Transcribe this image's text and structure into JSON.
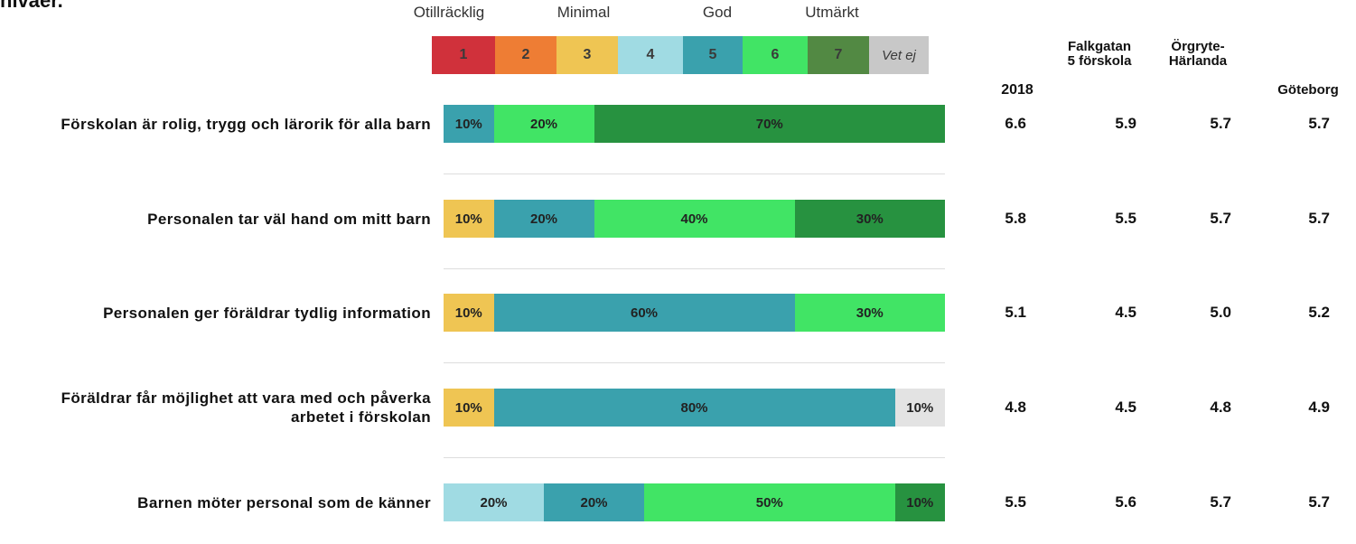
{
  "header": {
    "title_fragment": "nivåer.",
    "scale_labels": [
      "Otillräcklig",
      "Minimal",
      "God",
      "Utmärkt"
    ],
    "columns": [
      "2018",
      "Falkgatan 5 förskola",
      "Örgryte-Härlanda",
      "Göteborg"
    ]
  },
  "legend": {
    "items": [
      {
        "label": "1",
        "color": "#d0313b"
      },
      {
        "label": "2",
        "color": "#ee7d34"
      },
      {
        "label": "3",
        "color": "#efc553"
      },
      {
        "label": "4",
        "color": "#a0dbe3"
      },
      {
        "label": "5",
        "color": "#3aa1ad"
      },
      {
        "label": "6",
        "color": "#41e465"
      },
      {
        "label": "7",
        "color": "#528943"
      },
      {
        "label": "Vet ej",
        "color": "#c8c8c8"
      }
    ]
  },
  "chart_data": {
    "type": "bar",
    "orientation": "horizontal",
    "stacked": true,
    "percent": true,
    "categories": [
      "Förskolan är rolig, trygg och lärorik för alla barn",
      "Personalen tar väl hand om mitt barn",
      "Personalen ger föräldrar tydlig information",
      "Föräldrar får möjlighet att vara med och påverka arbetet i förskolan",
      "Barnen möter personal som de känner"
    ],
    "series": [
      {
        "name": "1",
        "color": "#d0313b",
        "values": [
          0,
          0,
          0,
          0,
          0
        ]
      },
      {
        "name": "2",
        "color": "#ee7d34",
        "values": [
          0,
          0,
          0,
          0,
          0
        ]
      },
      {
        "name": "3",
        "color": "#efc553",
        "values": [
          0,
          10,
          10,
          10,
          0
        ]
      },
      {
        "name": "4",
        "color": "#a0dbe3",
        "values": [
          0,
          0,
          0,
          0,
          20
        ]
      },
      {
        "name": "5",
        "color": "#3aa1ad",
        "values": [
          10,
          20,
          60,
          80,
          20
        ]
      },
      {
        "name": "6",
        "color": "#41e465",
        "values": [
          20,
          40,
          30,
          0,
          50
        ]
      },
      {
        "name": "7",
        "color": "#279240",
        "values": [
          70,
          30,
          0,
          0,
          10
        ]
      },
      {
        "name": "Vet ej",
        "color": "#e3e3e3",
        "values": [
          0,
          0,
          0,
          10,
          0
        ]
      }
    ],
    "data_labels": [
      [
        "10%",
        "20%",
        "70%"
      ],
      [
        "10%",
        "20%",
        "40%",
        "30%"
      ],
      [
        "10%",
        "60%",
        "30%"
      ],
      [
        "10%",
        "80%",
        "10%"
      ],
      [
        "20%",
        "20%",
        "50%",
        "10%"
      ]
    ],
    "xlim": [
      0,
      100
    ],
    "table": {
      "columns": [
        "2018",
        "Falkgatan 5 förskola",
        "Örgryte-Härlanda",
        "Göteborg"
      ],
      "rows": [
        [
          "6.6",
          "5.9",
          "5.7",
          "5.7"
        ],
        [
          "5.8",
          "5.5",
          "5.7",
          "5.7"
        ],
        [
          "5.1",
          "4.5",
          "5.0",
          "5.2"
        ],
        [
          "4.8",
          "4.5",
          "4.8",
          "4.9"
        ],
        [
          "5.5",
          "5.6",
          "5.7",
          "5.7"
        ]
      ]
    }
  }
}
